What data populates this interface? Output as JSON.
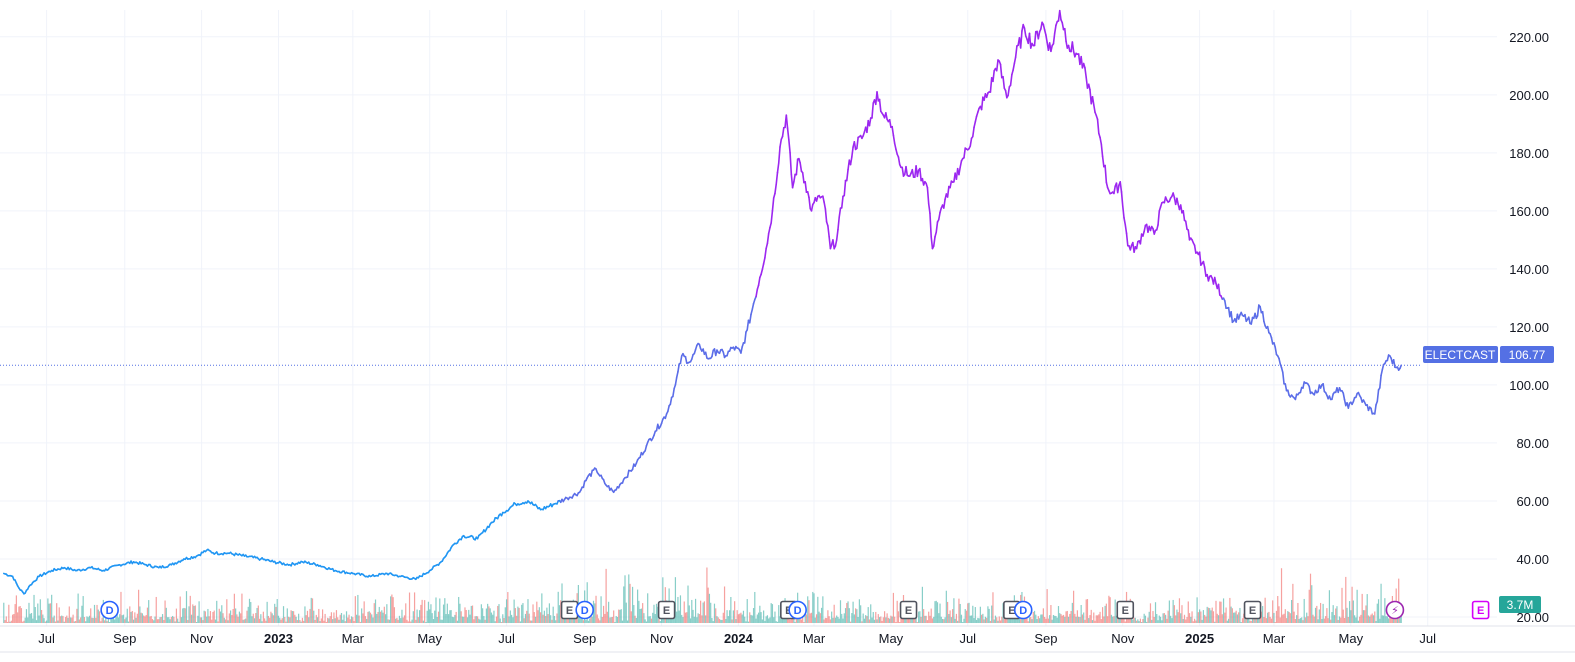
{
  "chart_data": {
    "type": "line",
    "ticker": "ELECTCAST",
    "last_price": 106.77,
    "last_price_label": "106.77",
    "volume_label": "3.7M",
    "y_ticks": [
      "20.00",
      "40.00",
      "60.00",
      "80.00",
      "100.00",
      "120.00",
      "140.00",
      "160.00",
      "180.00",
      "200.00",
      "220.00"
    ],
    "x_ticks": [
      {
        "label": "Jul",
        "date": "2022-07-01",
        "bold": false
      },
      {
        "label": "Sep",
        "date": "2022-09-01",
        "bold": false
      },
      {
        "label": "Nov",
        "date": "2022-11-01",
        "bold": false
      },
      {
        "label": "2023",
        "date": "2023-01-01",
        "bold": true
      },
      {
        "label": "Mar",
        "date": "2023-03-01",
        "bold": false
      },
      {
        "label": "May",
        "date": "2023-05-01",
        "bold": false
      },
      {
        "label": "Jul",
        "date": "2023-07-01",
        "bold": false
      },
      {
        "label": "Sep",
        "date": "2023-09-01",
        "bold": false
      },
      {
        "label": "Nov",
        "date": "2023-11-01",
        "bold": false
      },
      {
        "label": "2024",
        "date": "2024-01-01",
        "bold": true
      },
      {
        "label": "Mar",
        "date": "2024-03-01",
        "bold": false
      },
      {
        "label": "May",
        "date": "2024-05-01",
        "bold": false
      },
      {
        "label": "Jul",
        "date": "2024-07-01",
        "bold": false
      },
      {
        "label": "Sep",
        "date": "2024-09-01",
        "bold": false
      },
      {
        "label": "Nov",
        "date": "2024-11-01",
        "bold": false
      },
      {
        "label": "2025",
        "date": "2025-01-01",
        "bold": true
      },
      {
        "label": "Mar",
        "date": "2025-03-01",
        "bold": false
      },
      {
        "label": "May",
        "date": "2025-05-01",
        "bold": false
      },
      {
        "label": "Jul",
        "date": "2025-07-01",
        "bold": false
      }
    ],
    "x_range": [
      "2022-05-25",
      "2025-08-25"
    ],
    "y_range": [
      10,
      232
    ],
    "grid": true,
    "series": [
      {
        "points": [
          [
            "2022-05-28",
            35
          ],
          [
            "2022-06-04",
            34
          ],
          [
            "2022-06-09",
            30
          ],
          [
            "2022-06-13",
            28
          ],
          [
            "2022-06-18",
            31
          ],
          [
            "2022-06-25",
            34
          ],
          [
            "2022-07-05",
            36
          ],
          [
            "2022-07-15",
            37
          ],
          [
            "2022-07-25",
            36
          ],
          [
            "2022-08-05",
            37
          ],
          [
            "2022-08-15",
            36
          ],
          [
            "2022-08-28",
            38
          ],
          [
            "2022-09-08",
            39
          ],
          [
            "2022-09-18",
            38
          ],
          [
            "2022-09-28",
            37
          ],
          [
            "2022-10-08",
            38
          ],
          [
            "2022-10-18",
            40
          ],
          [
            "2022-10-28",
            41
          ],
          [
            "2022-11-05",
            43
          ],
          [
            "2022-11-12",
            42
          ],
          [
            "2022-11-22",
            42
          ],
          [
            "2022-12-05",
            41
          ],
          [
            "2022-12-18",
            40
          ],
          [
            "2022-12-28",
            39
          ],
          [
            "2023-01-10",
            38
          ],
          [
            "2023-01-20",
            39
          ],
          [
            "2023-02-01",
            38
          ],
          [
            "2023-02-15",
            36
          ],
          [
            "2023-03-01",
            35
          ],
          [
            "2023-03-15",
            34
          ],
          [
            "2023-03-28",
            35
          ],
          [
            "2023-04-08",
            34
          ],
          [
            "2023-04-20",
            33
          ],
          [
            "2023-05-01",
            36
          ],
          [
            "2023-05-10",
            39
          ],
          [
            "2023-05-20",
            45
          ],
          [
            "2023-05-28",
            48
          ],
          [
            "2023-06-08",
            47
          ],
          [
            "2023-06-18",
            52
          ],
          [
            "2023-06-28",
            56
          ],
          [
            "2023-07-08",
            59
          ],
          [
            "2023-07-18",
            60
          ],
          [
            "2023-07-28",
            57
          ],
          [
            "2023-08-08",
            59
          ],
          [
            "2023-08-18",
            61
          ],
          [
            "2023-08-28",
            63
          ],
          [
            "2023-09-03",
            68
          ],
          [
            "2023-09-10",
            71
          ],
          [
            "2023-09-17",
            66
          ],
          [
            "2023-09-24",
            63
          ],
          [
            "2023-10-03",
            68
          ],
          [
            "2023-10-12",
            73
          ],
          [
            "2023-10-20",
            79
          ],
          [
            "2023-10-27",
            84
          ],
          [
            "2023-11-05",
            90
          ],
          [
            "2023-11-12",
            100
          ],
          [
            "2023-11-17",
            110
          ],
          [
            "2023-11-24",
            108
          ],
          [
            "2023-12-01",
            114
          ],
          [
            "2023-12-08",
            109
          ],
          [
            "2023-12-15",
            112
          ],
          [
            "2023-12-22",
            110
          ],
          [
            "2023-12-28",
            113
          ],
          [
            "2024-01-03",
            111
          ],
          [
            "2024-01-08",
            119
          ],
          [
            "2024-01-13",
            128
          ],
          [
            "2024-01-18",
            137
          ],
          [
            "2024-01-23",
            147
          ],
          [
            "2024-01-28",
            160
          ],
          [
            "2024-02-03",
            182
          ],
          [
            "2024-02-08",
            193
          ],
          [
            "2024-02-13",
            168
          ],
          [
            "2024-02-18",
            178
          ],
          [
            "2024-02-23",
            170
          ],
          [
            "2024-02-28",
            160
          ],
          [
            "2024-03-04",
            165
          ],
          [
            "2024-03-09",
            163
          ],
          [
            "2024-03-14",
            147
          ],
          [
            "2024-03-19",
            150
          ],
          [
            "2024-03-24",
            165
          ],
          [
            "2024-04-01",
            182
          ],
          [
            "2024-04-08",
            185
          ],
          [
            "2024-04-15",
            192
          ],
          [
            "2024-04-20",
            201
          ],
          [
            "2024-04-25",
            193
          ],
          [
            "2024-05-02",
            189
          ],
          [
            "2024-05-09",
            175
          ],
          [
            "2024-05-16",
            172
          ],
          [
            "2024-05-23",
            174
          ],
          [
            "2024-05-30",
            168
          ],
          [
            "2024-06-03",
            147
          ],
          [
            "2024-06-08",
            157
          ],
          [
            "2024-06-13",
            164
          ],
          [
            "2024-06-20",
            170
          ],
          [
            "2024-06-27",
            178
          ],
          [
            "2024-07-04",
            185
          ],
          [
            "2024-07-11",
            196
          ],
          [
            "2024-07-18",
            201
          ],
          [
            "2024-07-25",
            212
          ],
          [
            "2024-08-01",
            199
          ],
          [
            "2024-08-08",
            213
          ],
          [
            "2024-08-15",
            223
          ],
          [
            "2024-08-22",
            217
          ],
          [
            "2024-08-29",
            225
          ],
          [
            "2024-09-05",
            215
          ],
          [
            "2024-09-12",
            229
          ],
          [
            "2024-09-19",
            217
          ],
          [
            "2024-09-26",
            214
          ],
          [
            "2024-10-03",
            206
          ],
          [
            "2024-10-10",
            194
          ],
          [
            "2024-10-15",
            183
          ],
          [
            "2024-10-20",
            168
          ],
          [
            "2024-10-25",
            166
          ],
          [
            "2024-10-30",
            170
          ],
          [
            "2024-11-05",
            148
          ],
          [
            "2024-11-12",
            147
          ],
          [
            "2024-11-19",
            155
          ],
          [
            "2024-11-26",
            152
          ],
          [
            "2024-12-03",
            163
          ],
          [
            "2024-12-10",
            165
          ],
          [
            "2024-12-17",
            162
          ],
          [
            "2024-12-24",
            150
          ],
          [
            "2024-12-31",
            145
          ],
          [
            "2025-01-07",
            138
          ],
          [
            "2025-01-14",
            135
          ],
          [
            "2025-01-21",
            129
          ],
          [
            "2025-01-28",
            122
          ],
          [
            "2025-02-04",
            124
          ],
          [
            "2025-02-11",
            121
          ],
          [
            "2025-02-18",
            127
          ],
          [
            "2025-02-25",
            118
          ],
          [
            "2025-03-04",
            110
          ],
          [
            "2025-03-11",
            98
          ],
          [
            "2025-03-18",
            95
          ],
          [
            "2025-03-25",
            101
          ],
          [
            "2025-04-01",
            97
          ],
          [
            "2025-04-08",
            100
          ],
          [
            "2025-04-15",
            95
          ],
          [
            "2025-04-22",
            99
          ],
          [
            "2025-04-29",
            92
          ],
          [
            "2025-05-06",
            97
          ],
          [
            "2025-05-13",
            93
          ],
          [
            "2025-05-20",
            90
          ],
          [
            "2025-05-27",
            107
          ],
          [
            "2025-06-01",
            110
          ],
          [
            "2025-06-06",
            106
          ],
          [
            "2025-06-10",
            106.77
          ]
        ]
      }
    ],
    "line_colors": {
      "low": "#2196f3",
      "mid": "#5b6de8",
      "high": "#9c27f0"
    },
    "volume_colors": {
      "up": "#26a69a",
      "down": "#ef5350"
    },
    "price_label_bg": "#5470e4",
    "volume_label_bg": "#26a69a",
    "events": [
      {
        "type": "dividend",
        "label": "D",
        "date": "2022-08-20"
      },
      {
        "type": "earnings",
        "label": "E",
        "date": "2023-08-20"
      },
      {
        "type": "dividend",
        "label": "D",
        "date": "2023-09-01"
      },
      {
        "type": "earnings",
        "label": "E",
        "date": "2023-11-05"
      },
      {
        "type": "earnings",
        "label": "E",
        "date": "2024-02-10"
      },
      {
        "type": "dividend",
        "label": "D",
        "date": "2024-02-17"
      },
      {
        "type": "earnings",
        "label": "E",
        "date": "2024-05-15"
      },
      {
        "type": "earnings",
        "label": "E",
        "date": "2024-08-05"
      },
      {
        "type": "dividend",
        "label": "D",
        "date": "2024-08-14"
      },
      {
        "type": "earnings",
        "label": "E",
        "date": "2024-11-03"
      },
      {
        "type": "earnings",
        "label": "E",
        "date": "2025-02-12"
      },
      {
        "type": "split",
        "label": "⚡",
        "date": "2025-06-05"
      },
      {
        "type": "earnings-upcoming",
        "label": "E",
        "date": "2025-08-12"
      }
    ]
  }
}
